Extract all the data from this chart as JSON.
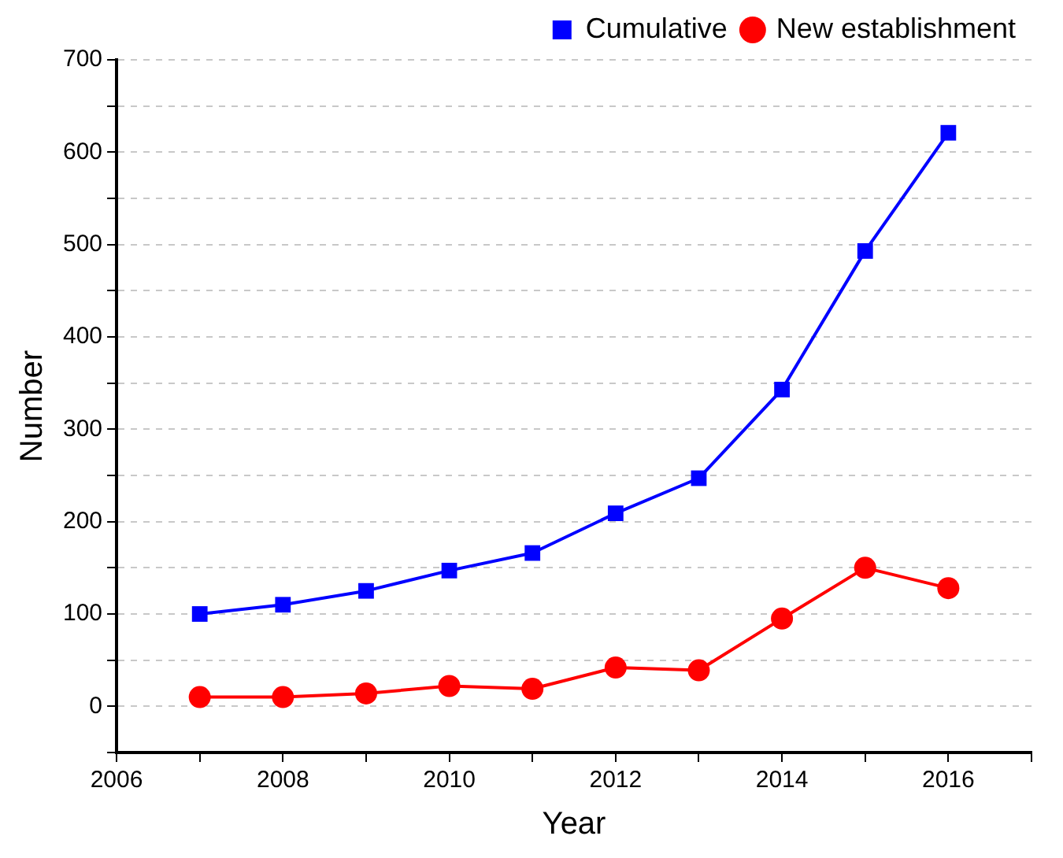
{
  "chart_data": {
    "type": "line",
    "xlabel": "Year",
    "ylabel": "Number",
    "x": [
      2007,
      2008,
      2009,
      2010,
      2011,
      2012,
      2013,
      2014,
      2015,
      2016
    ],
    "series": [
      {
        "name": "Cumulative",
        "color": "#0000ff",
        "marker": "square",
        "values": [
          100,
          110,
          125,
          147,
          166,
          209,
          247,
          343,
          493,
          621
        ]
      },
      {
        "name": "New establishment",
        "color": "#ff0000",
        "marker": "circle",
        "values": [
          10,
          10,
          14,
          22,
          19,
          42,
          39,
          95,
          150,
          128
        ]
      }
    ],
    "xlim": [
      2006,
      2017
    ],
    "xticks": [
      2006,
      {
        "value": 2007,
        "label": null
      },
      2008,
      {
        "value": 2009,
        "label": null
      },
      2010,
      {
        "value": 2011,
        "label": null
      },
      2012,
      {
        "value": 2013,
        "label": null
      },
      2014,
      {
        "value": 2015,
        "label": null
      },
      2016,
      {
        "value": 2017,
        "label": null
      }
    ],
    "ylim": [
      -50,
      700
    ],
    "yticks": [
      {
        "value": -50,
        "label": null
      },
      0,
      {
        "value": 50,
        "label": null
      },
      100,
      {
        "value": 150,
        "label": null
      },
      200,
      {
        "value": 250,
        "label": null
      },
      300,
      {
        "value": 350,
        "label": null
      },
      400,
      {
        "value": 450,
        "label": null
      },
      500,
      {
        "value": 550,
        "label": null
      },
      600,
      {
        "value": 650,
        "label": null
      },
      700
    ],
    "grid": "y",
    "legend": "top right",
    "line_style": "solid"
  }
}
